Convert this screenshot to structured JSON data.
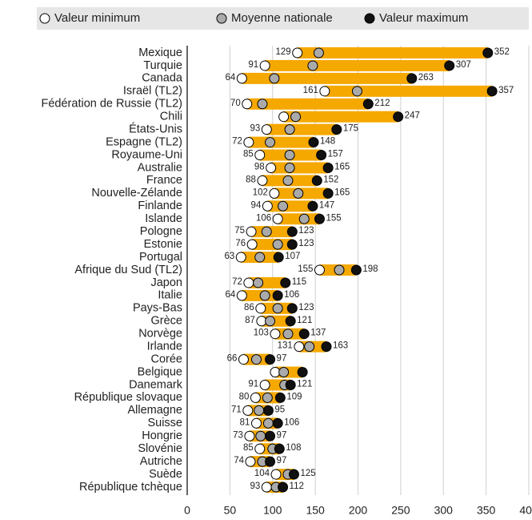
{
  "chart_data": {
    "type": "dot_range",
    "categories": [
      "Mexique",
      "Turquie",
      "Canada",
      "Israël (TL2)",
      "Fédération de Russie (TL2)",
      "Chili",
      "États-Unis",
      "Espagne (TL2)",
      "Royaume-Uni",
      "Australie",
      "France",
      "Nouvelle-Zélande",
      "Finlande",
      "Islande",
      "Pologne",
      "Estonie",
      "Portugal",
      "Afrique du Sud (TL2)",
      "Japon",
      "Italie",
      "Pays-Bas",
      "Grèce",
      "Norvège",
      "Irlande",
      "Corée",
      "Belgique",
      "Danemark",
      "République slovaque",
      "Allemagne",
      "Suisse",
      "Hongrie",
      "Slovénie",
      "Autriche",
      "Suède",
      "République tchèque"
    ],
    "series": [
      {
        "name": "Valeur minimum",
        "color": "#ffffff",
        "values": [
          129,
          91,
          64,
          161,
          70,
          113,
          93,
          72,
          85,
          98,
          88,
          102,
          94,
          106,
          75,
          76,
          63,
          155,
          72,
          64,
          86,
          87,
          103,
          131,
          66,
          103,
          91,
          80,
          71,
          81,
          73,
          85,
          74,
          104,
          93
        ],
        "value_labels": [
          "129",
          "91",
          "64",
          "161",
          "70",
          null,
          "93",
          "72",
          "85",
          "98",
          "88",
          "102",
          "94",
          "106",
          "75",
          "76",
          "63",
          "155",
          "72",
          "64",
          "86",
          "87",
          "103",
          "131",
          "66",
          null,
          "91",
          "80",
          "71",
          "81",
          "73",
          "85",
          "74",
          "104",
          "93"
        ]
      },
      {
        "name": "Moyenne nationale",
        "color": "#aaaaaa",
        "values": [
          154,
          147,
          102,
          199,
          88,
          127,
          120,
          97,
          120,
          120,
          118,
          130,
          112,
          137,
          93,
          106,
          85,
          178,
          83,
          91,
          106,
          97,
          118,
          143,
          81,
          113,
          114,
          94,
          84,
          95,
          86,
          100,
          88,
          118,
          104
        ]
      },
      {
        "name": "Valeur maximum",
        "color": "#111111",
        "values": [
          352,
          307,
          263,
          357,
          212,
          247,
          175,
          148,
          157,
          165,
          152,
          165,
          147,
          155,
          123,
          123,
          107,
          198,
          115,
          106,
          123,
          121,
          137,
          163,
          97,
          135,
          121,
          109,
          95,
          106,
          97,
          108,
          97,
          125,
          112
        ],
        "value_labels": [
          "352",
          "307",
          "263",
          "357",
          "212",
          "247",
          "175",
          "148",
          "157",
          "165",
          "152",
          "165",
          "147",
          "155",
          "123",
          "123",
          "107",
          "198",
          "115",
          "106",
          "123",
          "121",
          "137",
          "163",
          "97",
          null,
          "121",
          "109",
          "95",
          "106",
          "97",
          "108",
          "97",
          "125",
          "112"
        ]
      }
    ],
    "bar_color": "#f5a800",
    "xlim": [
      0,
      400
    ],
    "xticks": [
      0,
      50,
      100,
      150,
      200,
      250,
      300,
      350,
      400
    ],
    "grid": true
  }
}
